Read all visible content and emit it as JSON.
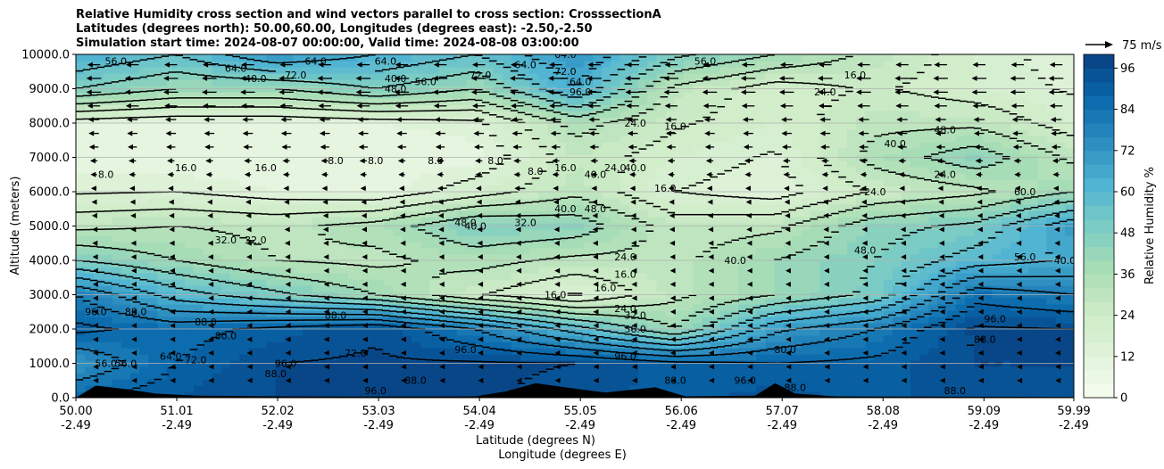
{
  "title_lines": [
    "Relative Humidity cross section and wind vectors parallel to cross section: CrosssectionA",
    "Latitudes (degrees north): 50.00,60.00, Longitudes (degrees east): -2.50,-2.50",
    "Simulation start time: 2024-08-07 00:00:00, Valid time: 2024-08-08 03:00:00"
  ],
  "chart_data": {
    "type": "heatmap",
    "ylabel": "Altitude (meters)",
    "xlabel_lines": [
      "Latitude (degrees N)",
      "Longitude (degrees E)"
    ],
    "x_range": [
      50.0,
      59.99
    ],
    "y_range": [
      0,
      10000
    ],
    "x_ticks": [
      {
        "lat": "50.00",
        "lon": "-2.49",
        "value": 50.0
      },
      {
        "lat": "51.01",
        "lon": "-2.49",
        "value": 51.01
      },
      {
        "lat": "52.02",
        "lon": "-2.49",
        "value": 52.02
      },
      {
        "lat": "53.03",
        "lon": "-2.49",
        "value": 53.03
      },
      {
        "lat": "54.04",
        "lon": "-2.49",
        "value": 54.04
      },
      {
        "lat": "55.05",
        "lon": "-2.49",
        "value": 55.05
      },
      {
        "lat": "56.06",
        "lon": "-2.49",
        "value": 56.06
      },
      {
        "lat": "57.07",
        "lon": "-2.49",
        "value": 57.07
      },
      {
        "lat": "58.08",
        "lon": "-2.49",
        "value": 58.08
      },
      {
        "lat": "59.09",
        "lon": "-2.49",
        "value": 59.09
      },
      {
        "lat": "59.99",
        "lon": "-2.49",
        "value": 59.99
      }
    ],
    "y_ticks": [
      {
        "label": "0.0",
        "value": 0
      },
      {
        "label": "1000.0",
        "value": 1000
      },
      {
        "label": "2000.0",
        "value": 2000
      },
      {
        "label": "3000.0",
        "value": 3000
      },
      {
        "label": "4000.0",
        "value": 4000
      },
      {
        "label": "5000.0",
        "value": 5000
      },
      {
        "label": "6000.0",
        "value": 6000
      },
      {
        "label": "7000.0",
        "value": 7000
      },
      {
        "label": "8000.0",
        "value": 8000
      },
      {
        "label": "9000.0",
        "value": 9000
      },
      {
        "label": "10000.0",
        "value": 10000
      }
    ],
    "colorbar": {
      "label": "Relative Humidity %",
      "range": [
        0,
        100
      ],
      "ticks": [
        "0",
        "12",
        "24",
        "36",
        "48",
        "60",
        "72",
        "84",
        "96"
      ],
      "colors": [
        "#f7fcf0",
        "#e0f3db",
        "#ccebc5",
        "#a8ddb5",
        "#7bccc4",
        "#4eb3d3",
        "#2b8cbe",
        "#0868ac",
        "#084081"
      ]
    },
    "quiver_key": {
      "label": "75 m/s"
    },
    "grid": "horizontal",
    "rh_field": {
      "x": [
        50.0,
        51.0,
        52.0,
        53.0,
        54.0,
        55.0,
        56.0,
        57.0,
        58.0,
        59.0,
        59.99
      ],
      "z": [
        0,
        1000,
        2000,
        3000,
        4000,
        5000,
        6000,
        7000,
        8000,
        9000,
        10000
      ],
      "values": [
        [
          88,
          92,
          96,
          96,
          97,
          94,
          90,
          94,
          90,
          95,
          96
        ],
        [
          72,
          88,
          96,
          97,
          97,
          96,
          90,
          88,
          90,
          96,
          96
        ],
        [
          90,
          85,
          90,
          95,
          80,
          60,
          40,
          70,
          80,
          97,
          96
        ],
        [
          80,
          60,
          50,
          40,
          25,
          15,
          30,
          40,
          50,
          85,
          80
        ],
        [
          48,
          40,
          32,
          30,
          35,
          30,
          30,
          40,
          48,
          60,
          65
        ],
        [
          30,
          32,
          30,
          35,
          48,
          45,
          28,
          30,
          45,
          50,
          70
        ],
        [
          15,
          16,
          12,
          10,
          20,
          30,
          16,
          12,
          25,
          30,
          40
        ],
        [
          10,
          8,
          8,
          8,
          10,
          28,
          20,
          15,
          35,
          45,
          30
        ],
        [
          12,
          10,
          10,
          12,
          14,
          35,
          25,
          20,
          30,
          30,
          20
        ],
        [
          48,
          40,
          40,
          48,
          40,
          64,
          30,
          20,
          25,
          20,
          15
        ],
        [
          64,
          56,
          72,
          64,
          56,
          72,
          50,
          40,
          30,
          20,
          12
        ]
      ]
    },
    "contour_labels": [
      {
        "text": "8.0",
        "x": 50.3,
        "y": 6400
      },
      {
        "text": "16.0",
        "x": 51.1,
        "y": 6600
      },
      {
        "text": "16.0",
        "x": 51.9,
        "y": 6600
      },
      {
        "text": "8.0",
        "x": 52.6,
        "y": 6800
      },
      {
        "text": "8.0",
        "x": 53.0,
        "y": 6800
      },
      {
        "text": "8.0",
        "x": 53.6,
        "y": 6800
      },
      {
        "text": "8.0",
        "x": 54.2,
        "y": 6800
      },
      {
        "text": "32.0",
        "x": 51.5,
        "y": 4500
      },
      {
        "text": "32.0",
        "x": 51.8,
        "y": 4500
      },
      {
        "text": "48.0",
        "x": 53.9,
        "y": 5000
      },
      {
        "text": "40.0",
        "x": 54.0,
        "y": 4900
      },
      {
        "text": "32.0",
        "x": 54.5,
        "y": 5000
      },
      {
        "text": "40.0",
        "x": 54.9,
        "y": 5400
      },
      {
        "text": "48.0",
        "x": 55.2,
        "y": 5400
      },
      {
        "text": "40.0",
        "x": 55.2,
        "y": 6400
      },
      {
        "text": "8.0",
        "x": 54.6,
        "y": 6500
      },
      {
        "text": "16.0",
        "x": 54.9,
        "y": 6600
      },
      {
        "text": "24.0",
        "x": 55.4,
        "y": 6600
      },
      {
        "text": "24.0",
        "x": 55.5,
        "y": 4000
      },
      {
        "text": "16.0",
        "x": 55.5,
        "y": 3500
      },
      {
        "text": "16.0",
        "x": 55.3,
        "y": 3100
      },
      {
        "text": "16.0",
        "x": 54.8,
        "y": 2900
      },
      {
        "text": "24.0",
        "x": 55.5,
        "y": 2500
      },
      {
        "text": "32.0",
        "x": 55.6,
        "y": 2300
      },
      {
        "text": "56.0",
        "x": 55.6,
        "y": 1900
      },
      {
        "text": "96.0",
        "x": 55.5,
        "y": 1100
      },
      {
        "text": "16.0",
        "x": 56.0,
        "y": 7800
      },
      {
        "text": "24.0",
        "x": 55.6,
        "y": 7900
      },
      {
        "text": "40.0",
        "x": 55.6,
        "y": 6600
      },
      {
        "text": "16.0",
        "x": 55.9,
        "y": 6000
      },
      {
        "text": "40.0",
        "x": 56.6,
        "y": 3900
      },
      {
        "text": "16.0",
        "x": 57.8,
        "y": 9300
      },
      {
        "text": "24.0",
        "x": 57.5,
        "y": 8800
      },
      {
        "text": "40.0",
        "x": 58.2,
        "y": 7300
      },
      {
        "text": "48.0",
        "x": 58.7,
        "y": 7700
      },
      {
        "text": "24.0",
        "x": 58.0,
        "y": 5900
      },
      {
        "text": "24.0",
        "x": 58.7,
        "y": 6400
      },
      {
        "text": "48.0",
        "x": 57.9,
        "y": 4200
      },
      {
        "text": "56.0",
        "x": 59.5,
        "y": 4000
      },
      {
        "text": "60.0",
        "x": 59.5,
        "y": 5900
      },
      {
        "text": "40.0",
        "x": 59.9,
        "y": 3900
      },
      {
        "text": "88.0",
        "x": 51.3,
        "y": 2100
      },
      {
        "text": "80.0",
        "x": 51.5,
        "y": 1700
      },
      {
        "text": "72.0",
        "x": 51.2,
        "y": 1000
      },
      {
        "text": "88.0",
        "x": 52.0,
        "y": 600
      },
      {
        "text": "96.0",
        "x": 52.1,
        "y": 900
      },
      {
        "text": "88.0",
        "x": 52.6,
        "y": 2300
      },
      {
        "text": "72.0",
        "x": 52.8,
        "y": 1200
      },
      {
        "text": "96.0",
        "x": 53.0,
        "y": 100
      },
      {
        "text": "88.0",
        "x": 53.4,
        "y": 400
      },
      {
        "text": "96.0",
        "x": 53.9,
        "y": 1300
      },
      {
        "text": "96.0",
        "x": 50.2,
        "y": 2400
      },
      {
        "text": "88.0",
        "x": 50.6,
        "y": 2400
      },
      {
        "text": "56.0",
        "x": 50.3,
        "y": 900
      },
      {
        "text": "56.0",
        "x": 50.5,
        "y": 900
      },
      {
        "text": "64.0",
        "x": 50.95,
        "y": 1100
      },
      {
        "text": "88.0",
        "x": 56.0,
        "y": 400
      },
      {
        "text": "80.0",
        "x": 57.1,
        "y": 1300
      },
      {
        "text": "88.0",
        "x": 57.2,
        "y": 200
      },
      {
        "text": "96.0",
        "x": 56.7,
        "y": 400
      },
      {
        "text": "88.0",
        "x": 59.1,
        "y": 1600
      },
      {
        "text": "96.0",
        "x": 59.2,
        "y": 2200
      },
      {
        "text": "88.0",
        "x": 58.8,
        "y": 100
      },
      {
        "text": "64.0",
        "x": 52.4,
        "y": 9700
      },
      {
        "text": "72.0",
        "x": 52.2,
        "y": 9300
      },
      {
        "text": "64.0",
        "x": 53.1,
        "y": 9700
      },
      {
        "text": "40.0",
        "x": 53.2,
        "y": 9200
      },
      {
        "text": "48.0",
        "x": 53.2,
        "y": 8900
      },
      {
        "text": "56.0",
        "x": 53.5,
        "y": 9100
      },
      {
        "text": "72.0",
        "x": 54.05,
        "y": 9300
      },
      {
        "text": "64.0",
        "x": 54.5,
        "y": 9600
      },
      {
        "text": "64.0",
        "x": 54.9,
        "y": 9900
      },
      {
        "text": "72.0",
        "x": 54.9,
        "y": 9400
      },
      {
        "text": "64.0",
        "x": 55.05,
        "y": 9100
      },
      {
        "text": "96.0",
        "x": 55.05,
        "y": 8800
      },
      {
        "text": "56.0",
        "x": 56.3,
        "y": 9700
      },
      {
        "text": "64.0",
        "x": 51.6,
        "y": 9500
      },
      {
        "text": "40.0",
        "x": 51.8,
        "y": 9200
      },
      {
        "text": "56.0",
        "x": 50.4,
        "y": 9700
      }
    ],
    "wind_vectors": {
      "direction": "south",
      "rows": [
        {
          "z": 9700,
          "speed": 35
        },
        {
          "z": 9300,
          "speed": 40
        },
        {
          "z": 8900,
          "speed": 40
        },
        {
          "z": 8500,
          "speed": 35
        },
        {
          "z": 8100,
          "speed": 30
        },
        {
          "z": 7700,
          "speed": 28
        },
        {
          "z": 7300,
          "speed": 25
        },
        {
          "z": 6900,
          "speed": 20
        },
        {
          "z": 6500,
          "speed": 18
        },
        {
          "z": 6100,
          "speed": 15
        },
        {
          "z": 5700,
          "speed": 12
        },
        {
          "z": 5300,
          "speed": 10
        },
        {
          "z": 4900,
          "speed": 9
        },
        {
          "z": 4500,
          "speed": 8
        },
        {
          "z": 4100,
          "speed": 7
        },
        {
          "z": 3700,
          "speed": 6
        },
        {
          "z": 3300,
          "speed": 6
        },
        {
          "z": 2900,
          "speed": 5
        },
        {
          "z": 2500,
          "speed": 5
        },
        {
          "z": 2100,
          "speed": 5
        },
        {
          "z": 1700,
          "speed": 5
        },
        {
          "z": 1300,
          "speed": 5
        },
        {
          "z": 900,
          "speed": 4
        },
        {
          "z": 500,
          "speed": 4
        }
      ]
    }
  }
}
